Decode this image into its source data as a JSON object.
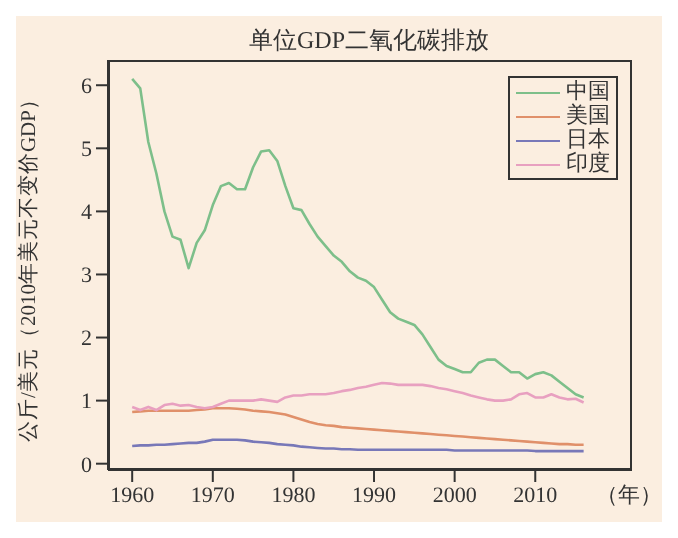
{
  "chart_data": {
    "type": "line",
    "title": "单位GDP二氧化碳排放",
    "ylabel": "公斤/美元（2010年美元不变价GDP）",
    "xlabel": "（年）",
    "x": [
      1960,
      1961,
      1962,
      1963,
      1964,
      1965,
      1966,
      1967,
      1968,
      1969,
      1970,
      1971,
      1972,
      1973,
      1974,
      1975,
      1976,
      1977,
      1978,
      1979,
      1980,
      1981,
      1982,
      1983,
      1984,
      1985,
      1986,
      1987,
      1988,
      1989,
      1990,
      1991,
      1992,
      1993,
      1994,
      1995,
      1996,
      1997,
      1998,
      1999,
      2000,
      2001,
      2002,
      2003,
      2004,
      2005,
      2006,
      2007,
      2008,
      2009,
      2010,
      2011,
      2012,
      2013,
      2014,
      2015,
      2016
    ],
    "series": [
      {
        "name": "中国",
        "color": "#7dbf8a",
        "values": [
          6.1,
          5.95,
          5.1,
          4.6,
          4.0,
          3.6,
          3.55,
          3.1,
          3.5,
          3.7,
          4.1,
          4.4,
          4.45,
          4.35,
          4.35,
          4.7,
          4.95,
          4.97,
          4.8,
          4.4,
          4.05,
          4.02,
          3.8,
          3.6,
          3.45,
          3.3,
          3.2,
          3.05,
          2.95,
          2.9,
          2.8,
          2.6,
          2.4,
          2.3,
          2.25,
          2.2,
          2.05,
          1.85,
          1.65,
          1.55,
          1.5,
          1.45,
          1.45,
          1.6,
          1.65,
          1.65,
          1.55,
          1.45,
          1.45,
          1.35,
          1.42,
          1.45,
          1.4,
          1.3,
          1.2,
          1.1,
          1.05
        ]
      },
      {
        "name": "美国",
        "color": "#e0906a",
        "values": [
          0.82,
          0.83,
          0.84,
          0.84,
          0.84,
          0.84,
          0.84,
          0.84,
          0.85,
          0.86,
          0.88,
          0.88,
          0.88,
          0.87,
          0.86,
          0.84,
          0.83,
          0.82,
          0.8,
          0.78,
          0.74,
          0.7,
          0.66,
          0.63,
          0.61,
          0.6,
          0.58,
          0.57,
          0.56,
          0.55,
          0.54,
          0.53,
          0.52,
          0.51,
          0.5,
          0.49,
          0.48,
          0.47,
          0.46,
          0.45,
          0.44,
          0.43,
          0.42,
          0.41,
          0.4,
          0.39,
          0.38,
          0.37,
          0.36,
          0.35,
          0.34,
          0.33,
          0.32,
          0.31,
          0.31,
          0.3,
          0.3
        ]
      },
      {
        "name": "日本",
        "color": "#7878b8",
        "values": [
          0.28,
          0.29,
          0.29,
          0.3,
          0.3,
          0.31,
          0.32,
          0.33,
          0.33,
          0.35,
          0.38,
          0.38,
          0.38,
          0.38,
          0.37,
          0.35,
          0.34,
          0.33,
          0.31,
          0.3,
          0.29,
          0.27,
          0.26,
          0.25,
          0.24,
          0.24,
          0.23,
          0.23,
          0.22,
          0.22,
          0.22,
          0.22,
          0.22,
          0.22,
          0.22,
          0.22,
          0.22,
          0.22,
          0.22,
          0.22,
          0.21,
          0.21,
          0.21,
          0.21,
          0.21,
          0.21,
          0.21,
          0.21,
          0.21,
          0.21,
          0.2,
          0.2,
          0.2,
          0.2,
          0.2,
          0.2,
          0.2
        ]
      },
      {
        "name": "印度",
        "color": "#e8a0c0",
        "values": [
          0.9,
          0.85,
          0.9,
          0.85,
          0.93,
          0.95,
          0.92,
          0.93,
          0.9,
          0.88,
          0.9,
          0.95,
          1.0,
          1.0,
          1.0,
          1.0,
          1.02,
          1.0,
          0.98,
          1.05,
          1.08,
          1.08,
          1.1,
          1.1,
          1.1,
          1.12,
          1.15,
          1.17,
          1.2,
          1.22,
          1.25,
          1.28,
          1.27,
          1.25,
          1.25,
          1.25,
          1.25,
          1.23,
          1.2,
          1.18,
          1.15,
          1.12,
          1.08,
          1.05,
          1.02,
          1.0,
          1.0,
          1.02,
          1.1,
          1.12,
          1.05,
          1.05,
          1.1,
          1.05,
          1.02,
          1.03,
          0.97
        ]
      }
    ],
    "xlim": [
      1957,
      2022
    ],
    "xticks": [
      1960,
      1970,
      1980,
      1990,
      2000,
      2010
    ],
    "ylim": [
      -0.1,
      6.4
    ],
    "yticks": [
      0,
      1,
      2,
      3,
      4,
      5,
      6
    ],
    "grid": false,
    "legend": "top right",
    "marker": "none",
    "line_style": "solid"
  }
}
